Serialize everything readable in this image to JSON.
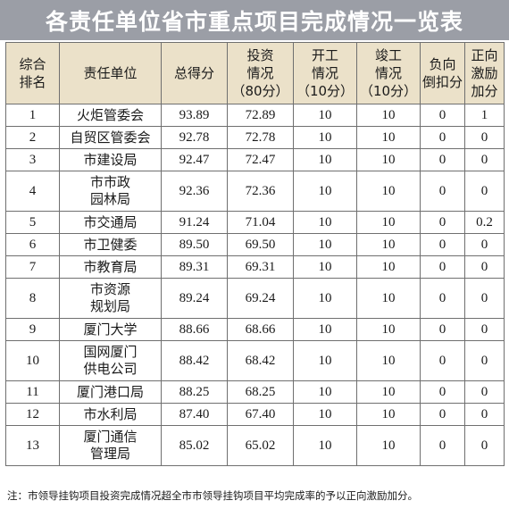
{
  "title": "各责任单位省市重点项目完成情况一览表",
  "headers": {
    "rank": "综合\n排名",
    "unit": "责任单位",
    "total": "总得分",
    "invest": "投资\n情况\n（80分）",
    "start": "开工\n情况\n（10分）",
    "complete": "竣工\n情况\n（10分）",
    "penalty": "负向\n倒扣分",
    "bonus": "正向\n激励\n加分"
  },
  "rows": [
    {
      "rank": "1",
      "unit": "火炬管委会",
      "total": "93.89",
      "invest": "72.89",
      "start": "10",
      "complete": "10",
      "penalty": "0",
      "bonus": "1"
    },
    {
      "rank": "2",
      "unit": "自贸区管委会",
      "total": "92.78",
      "invest": "72.78",
      "start": "10",
      "complete": "10",
      "penalty": "0",
      "bonus": "0"
    },
    {
      "rank": "3",
      "unit": "市建设局",
      "total": "92.47",
      "invest": "72.47",
      "start": "10",
      "complete": "10",
      "penalty": "0",
      "bonus": "0"
    },
    {
      "rank": "4",
      "unit": "市市政\n园林局",
      "total": "92.36",
      "invest": "72.36",
      "start": "10",
      "complete": "10",
      "penalty": "0",
      "bonus": "0"
    },
    {
      "rank": "5",
      "unit": "市交通局",
      "total": "91.24",
      "invest": "71.04",
      "start": "10",
      "complete": "10",
      "penalty": "0",
      "bonus": "0.2"
    },
    {
      "rank": "6",
      "unit": "市卫健委",
      "total": "89.50",
      "invest": "69.50",
      "start": "10",
      "complete": "10",
      "penalty": "0",
      "bonus": "0"
    },
    {
      "rank": "7",
      "unit": "市教育局",
      "total": "89.31",
      "invest": "69.31",
      "start": "10",
      "complete": "10",
      "penalty": "0",
      "bonus": "0"
    },
    {
      "rank": "8",
      "unit": "市资源\n规划局",
      "total": "89.24",
      "invest": "69.24",
      "start": "10",
      "complete": "10",
      "penalty": "0",
      "bonus": "0"
    },
    {
      "rank": "9",
      "unit": "厦门大学",
      "total": "88.66",
      "invest": "68.66",
      "start": "10",
      "complete": "10",
      "penalty": "0",
      "bonus": "0"
    },
    {
      "rank": "10",
      "unit": "国网厦门\n供电公司",
      "total": "88.42",
      "invest": "68.42",
      "start": "10",
      "complete": "10",
      "penalty": "0",
      "bonus": "0"
    },
    {
      "rank": "11",
      "unit": "厦门港口局",
      "total": "88.25",
      "invest": "68.25",
      "start": "10",
      "complete": "10",
      "penalty": "0",
      "bonus": "0"
    },
    {
      "rank": "12",
      "unit": "市水利局",
      "total": "87.40",
      "invest": "67.40",
      "start": "10",
      "complete": "10",
      "penalty": "0",
      "bonus": "0"
    },
    {
      "rank": "13",
      "unit": "厦门通信\n管理局",
      "total": "85.02",
      "invest": "65.02",
      "start": "10",
      "complete": "10",
      "penalty": "0",
      "bonus": "0"
    }
  ],
  "note": "注：市领导挂钩项目投资完成情况超全市市领导挂钩项目平均完成率的予以正向激励加分。"
}
